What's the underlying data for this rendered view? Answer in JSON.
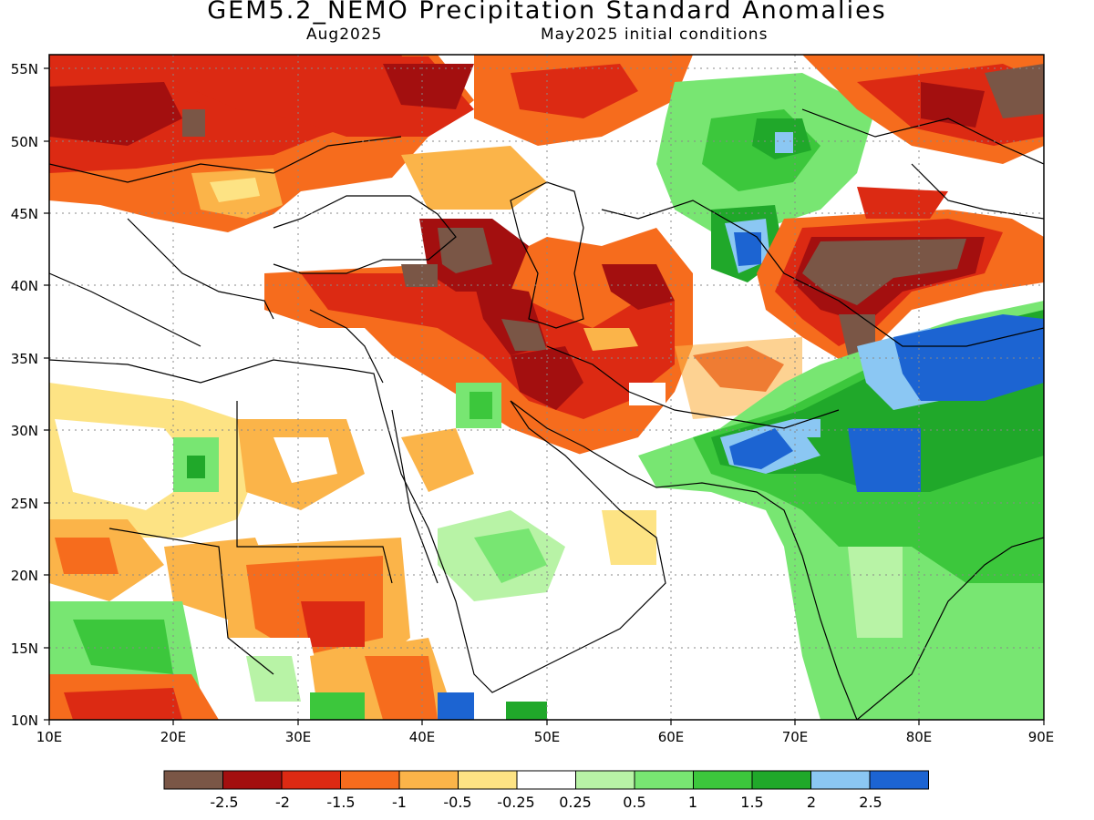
{
  "header": {
    "title": "GEM5.2_NEMO Precipitation Standard Anomalies",
    "valid_month": "Aug2025",
    "initial_conditions": "May2025 initial conditions"
  },
  "map": {
    "lon_ticks": [
      "10E",
      "20E",
      "30E",
      "40E",
      "50E",
      "60E",
      "70E",
      "80E",
      "90E"
    ],
    "lat_ticks": [
      "55N",
      "50N",
      "45N",
      "40N",
      "35N",
      "30N",
      "25N",
      "20N",
      "15N",
      "10N"
    ]
  },
  "colorbar": {
    "labels": [
      "-2.5",
      "-2",
      "-1.5",
      "-1",
      "-0.5",
      "-0.25",
      "0.25",
      "0.5",
      "1",
      "1.5",
      "2",
      "2.5"
    ],
    "colors": [
      "#7a5646",
      "#a30f0f",
      "#dc2a13",
      "#f66c1d",
      "#fbb449",
      "#fde384",
      "#ffffff",
      "#b8f3a6",
      "#78e672",
      "#3cc73c",
      "#20a82a",
      "#8bc7f3",
      "#1c64d2"
    ]
  }
}
